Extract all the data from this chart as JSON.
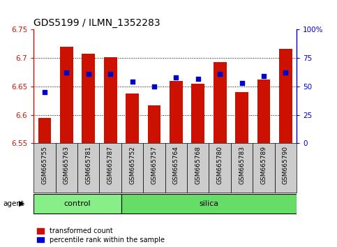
{
  "title": "GDS5199 / ILMN_1352283",
  "samples": [
    "GSM665755",
    "GSM665763",
    "GSM665781",
    "GSM665787",
    "GSM665752",
    "GSM665757",
    "GSM665764",
    "GSM665768",
    "GSM665780",
    "GSM665783",
    "GSM665789",
    "GSM665790"
  ],
  "groups": [
    "control",
    "control",
    "control",
    "control",
    "silica",
    "silica",
    "silica",
    "silica",
    "silica",
    "silica",
    "silica",
    "silica"
  ],
  "transformed_count": [
    6.595,
    6.72,
    6.708,
    6.702,
    6.638,
    6.617,
    6.66,
    6.655,
    6.693,
    6.64,
    6.662,
    6.716
  ],
  "percentile_rank": [
    45,
    62,
    61,
    61,
    54,
    50,
    58,
    57,
    61,
    53,
    59,
    62
  ],
  "ylim_left": [
    6.55,
    6.75
  ],
  "ylim_right": [
    0,
    100
  ],
  "yticks_left": [
    6.55,
    6.6,
    6.65,
    6.7,
    6.75
  ],
  "yticks_right": [
    0,
    25,
    50,
    75,
    100
  ],
  "ytick_labels_right": [
    "0",
    "25",
    "50",
    "75",
    "100%"
  ],
  "bar_color": "#cc1100",
  "dot_color": "#0000cc",
  "bg_color": "#ffffff",
  "tick_area_color": "#cccccc",
  "control_color": "#88ee88",
  "silica_color": "#66dd66",
  "left_axis_color": "#cc1100",
  "right_axis_color": "#0000cc",
  "grid_color": "#000000",
  "bar_width": 0.6,
  "base_value": 6.55,
  "dot_size": 16,
  "n_control": 4,
  "n_silica": 8
}
